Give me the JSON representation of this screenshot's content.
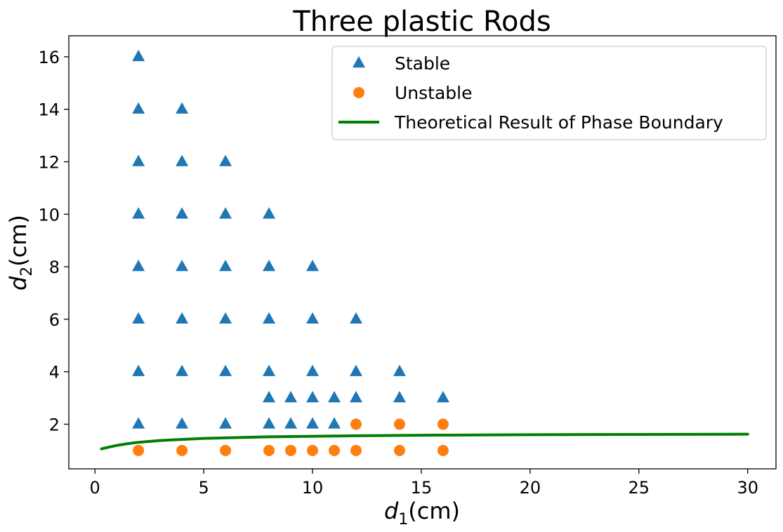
{
  "chart_data": {
    "type": "scatter",
    "title": "Three plastic Rods",
    "xlabel": {
      "base": "d",
      "sub": "1",
      "unit": "(cm)"
    },
    "ylabel": {
      "base": "d",
      "sub": "2",
      "unit": "(cm)"
    },
    "xlim": [
      -1.2,
      31.3
    ],
    "ylim": [
      0.3,
      16.8
    ],
    "xticks": [
      0,
      5,
      10,
      15,
      20,
      25,
      30
    ],
    "yticks": [
      2,
      4,
      6,
      8,
      10,
      12,
      14,
      16
    ],
    "grid": false,
    "legend_position": "top-right",
    "series": [
      {
        "name": "Stable",
        "kind": "scatter",
        "marker": "triangle",
        "color": "#1f77b4",
        "points": [
          [
            2,
            2
          ],
          [
            2,
            4
          ],
          [
            2,
            6
          ],
          [
            2,
            8
          ],
          [
            2,
            10
          ],
          [
            2,
            12
          ],
          [
            2,
            14
          ],
          [
            2,
            16
          ],
          [
            4,
            2
          ],
          [
            4,
            4
          ],
          [
            4,
            6
          ],
          [
            4,
            8
          ],
          [
            4,
            10
          ],
          [
            4,
            12
          ],
          [
            4,
            14
          ],
          [
            6,
            2
          ],
          [
            6,
            4
          ],
          [
            6,
            6
          ],
          [
            6,
            8
          ],
          [
            6,
            10
          ],
          [
            6,
            12
          ],
          [
            8,
            2
          ],
          [
            8,
            3
          ],
          [
            8,
            4
          ],
          [
            8,
            6
          ],
          [
            8,
            8
          ],
          [
            8,
            10
          ],
          [
            9,
            2
          ],
          [
            9,
            3
          ],
          [
            10,
            2
          ],
          [
            10,
            3
          ],
          [
            10,
            4
          ],
          [
            10,
            6
          ],
          [
            10,
            8
          ],
          [
            11,
            2
          ],
          [
            11,
            3
          ],
          [
            12,
            3
          ],
          [
            12,
            4
          ],
          [
            12,
            6
          ],
          [
            14,
            3
          ],
          [
            14,
            4
          ],
          [
            16,
            3
          ]
        ]
      },
      {
        "name": "Unstable",
        "kind": "scatter",
        "marker": "circle",
        "color": "#ff7f0e",
        "points": [
          [
            2,
            1
          ],
          [
            4,
            1
          ],
          [
            6,
            1
          ],
          [
            8,
            1
          ],
          [
            9,
            1
          ],
          [
            10,
            1
          ],
          [
            11,
            1
          ],
          [
            12,
            1
          ],
          [
            12,
            2
          ],
          [
            14,
            1
          ],
          [
            14,
            2
          ],
          [
            16,
            1
          ],
          [
            16,
            2
          ]
        ]
      },
      {
        "name": "Theoretical Result of Phase Boundary",
        "kind": "line",
        "color": "#008000",
        "points": [
          [
            0.3,
            1.06
          ],
          [
            0.6,
            1.12
          ],
          [
            1,
            1.19
          ],
          [
            1.5,
            1.26
          ],
          [
            2,
            1.31
          ],
          [
            3,
            1.38
          ],
          [
            4,
            1.42
          ],
          [
            5,
            1.46
          ],
          [
            6,
            1.48
          ],
          [
            8,
            1.52
          ],
          [
            10,
            1.54
          ],
          [
            12,
            1.56
          ],
          [
            15,
            1.58
          ],
          [
            20,
            1.6
          ],
          [
            25,
            1.61
          ],
          [
            30,
            1.62
          ]
        ]
      }
    ]
  }
}
